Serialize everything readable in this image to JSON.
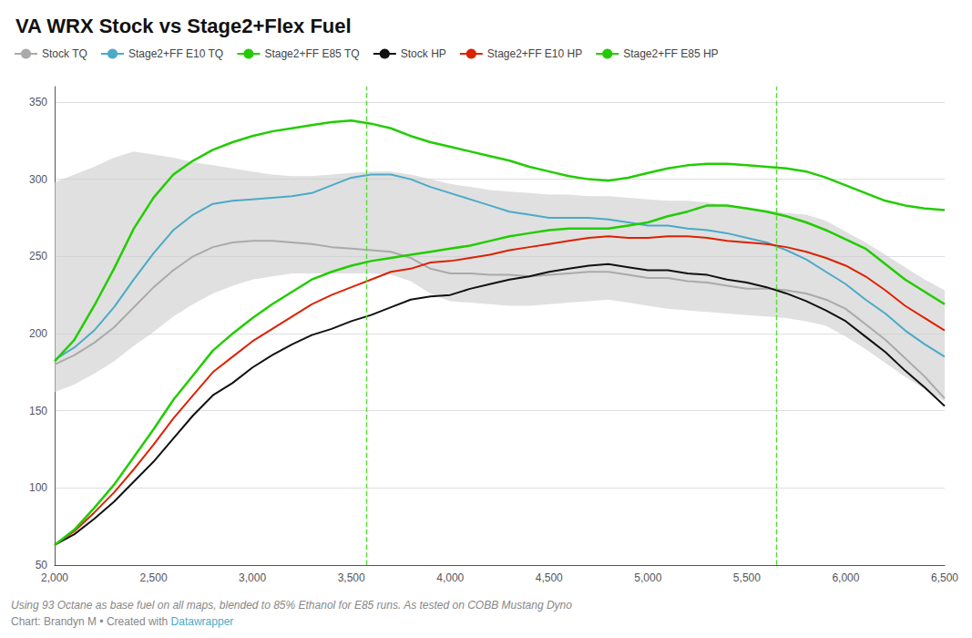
{
  "chart_data": {
    "type": "line",
    "title": "VA WRX Stock vs Stage2+Flex Fuel",
    "annotations": [
      "Using 93 Octane as base fuel on all maps, blended to 85% Ethanol for E85 runs. As tested on COBB Mustang Dyno",
      "Chart: Brandyn M • Created with "
    ],
    "link": {
      "text": "Datawrapper",
      "color": "#4baac8"
    },
    "x": [
      2000,
      2100,
      2200,
      2300,
      2400,
      2500,
      2600,
      2700,
      2800,
      2900,
      3000,
      3100,
      3200,
      3300,
      3400,
      3500,
      3600,
      3700,
      3800,
      3900,
      4000,
      4100,
      4200,
      4300,
      4400,
      4500,
      4600,
      4700,
      4800,
      4900,
      5000,
      5100,
      5200,
      5300,
      5400,
      5500,
      5600,
      5700,
      5800,
      5900,
      6000,
      6100,
      6200,
      6300,
      6400,
      6500
    ],
    "series": [
      {
        "name": "Stock TQ",
        "color": "#aaaaaa",
        "values": [
          180,
          186,
          194,
          204,
          217,
          230,
          241,
          250,
          256,
          259,
          260,
          260,
          259,
          258,
          256,
          255,
          254,
          253,
          249,
          242,
          239,
          239,
          238,
          238,
          237,
          238,
          239,
          240,
          240,
          238,
          236,
          236,
          234,
          233,
          231,
          229,
          229,
          228,
          226,
          222,
          216,
          206,
          196,
          184,
          172,
          158
        ]
      },
      {
        "name": "Stage2+FF E10 TQ",
        "color": "#4baac8",
        "values": [
          183,
          191,
          202,
          217,
          235,
          252,
          267,
          277,
          284,
          286,
          287,
          288,
          289,
          291,
          296,
          301,
          303,
          303,
          300,
          295,
          291,
          287,
          283,
          279,
          277,
          275,
          275,
          275,
          274,
          272,
          270,
          270,
          268,
          267,
          265,
          262,
          259,
          254,
          248,
          240,
          232,
          222,
          213,
          202,
          193,
          185
        ]
      },
      {
        "name": "Stage2+FF E85 TQ",
        "color": "#22cc00",
        "values": [
          182,
          196,
          218,
          242,
          268,
          288,
          303,
          312,
          319,
          324,
          328,
          331,
          333,
          335,
          337,
          338,
          336,
          333,
          328,
          324,
          321,
          318,
          315,
          312,
          308,
          305,
          302,
          300,
          299,
          301,
          304,
          307,
          309,
          310,
          310,
          309,
          308,
          307,
          305,
          301,
          296,
          291,
          286,
          283,
          281,
          280
        ]
      },
      {
        "name": "Stock HP",
        "color": "#111111",
        "values": [
          63,
          70,
          80,
          91,
          104,
          117,
          132,
          147,
          160,
          168,
          178,
          186,
          193,
          199,
          203,
          208,
          212,
          217,
          222,
          224,
          225,
          229,
          232,
          235,
          237,
          240,
          242,
          244,
          245,
          243,
          241,
          241,
          239,
          238,
          235,
          233,
          230,
          226,
          221,
          215,
          208,
          198,
          188,
          176,
          165,
          153
        ]
      },
      {
        "name": "Stage2+FF E10 HP",
        "color": "#dd2200",
        "values": [
          63,
          72,
          84,
          97,
          112,
          128,
          145,
          160,
          175,
          185,
          195,
          203,
          211,
          219,
          225,
          230,
          235,
          240,
          242,
          246,
          247,
          249,
          251,
          254,
          256,
          258,
          260,
          262,
          263,
          262,
          262,
          263,
          263,
          262,
          260,
          259,
          258,
          256,
          253,
          249,
          244,
          237,
          228,
          218,
          210,
          202
        ]
      },
      {
        "name": "Stage2+FF E85 HP",
        "color": "#22cc00",
        "values": [
          63,
          73,
          87,
          102,
          120,
          138,
          157,
          173,
          189,
          200,
          210,
          219,
          227,
          235,
          240,
          244,
          247,
          249,
          251,
          253,
          255,
          257,
          260,
          263,
          265,
          267,
          268,
          268,
          268,
          270,
          272,
          276,
          279,
          283,
          283,
          281,
          279,
          276,
          272,
          267,
          261,
          255,
          245,
          235,
          227,
          219
        ]
      }
    ],
    "band": {
      "color": "#cccccc",
      "lower": [
        162,
        167,
        174,
        182,
        192,
        201,
        211,
        219,
        226,
        231,
        235,
        237,
        239,
        239,
        239,
        239,
        239,
        238,
        234,
        226,
        221,
        220,
        219,
        218,
        218,
        219,
        220,
        221,
        222,
        220,
        218,
        216,
        215,
        214,
        213,
        212,
        211,
        210,
        208,
        205,
        198,
        190,
        181,
        172,
        164,
        156
      ],
      "upper": [
        298,
        303,
        308,
        314,
        318,
        316,
        314,
        311,
        309,
        307,
        305,
        303,
        302,
        302,
        303,
        304,
        305,
        305,
        303,
        300,
        297,
        295,
        293,
        292,
        291,
        290,
        290,
        289,
        289,
        288,
        287,
        286,
        286,
        285,
        283,
        282,
        280,
        278,
        277,
        273,
        266,
        259,
        251,
        243,
        235,
        228
      ]
    },
    "vlines": {
      "x": [
        3575,
        5650
      ],
      "color": "#55dd33",
      "line_style": "dashed"
    },
    "xlim": [
      2000,
      6500
    ],
    "xticks": [
      {
        "value": 2000,
        "label": "2,000"
      },
      {
        "value": 2500,
        "label": "2,500"
      },
      {
        "value": 3000,
        "label": "3,000"
      },
      {
        "value": 3500,
        "label": "3,500"
      },
      {
        "value": 4000,
        "label": "4,000"
      },
      {
        "value": 4500,
        "label": "4,500"
      },
      {
        "value": 5000,
        "label": "5,000"
      },
      {
        "value": 5500,
        "label": "5,500"
      },
      {
        "value": 6000,
        "label": "6,000"
      },
      {
        "value": 6500,
        "label": "6,500"
      }
    ],
    "ylim": [
      50,
      360
    ],
    "yticks": [
      50,
      100,
      150,
      200,
      250,
      300,
      350
    ],
    "grid": true,
    "legend": "upper left"
  }
}
